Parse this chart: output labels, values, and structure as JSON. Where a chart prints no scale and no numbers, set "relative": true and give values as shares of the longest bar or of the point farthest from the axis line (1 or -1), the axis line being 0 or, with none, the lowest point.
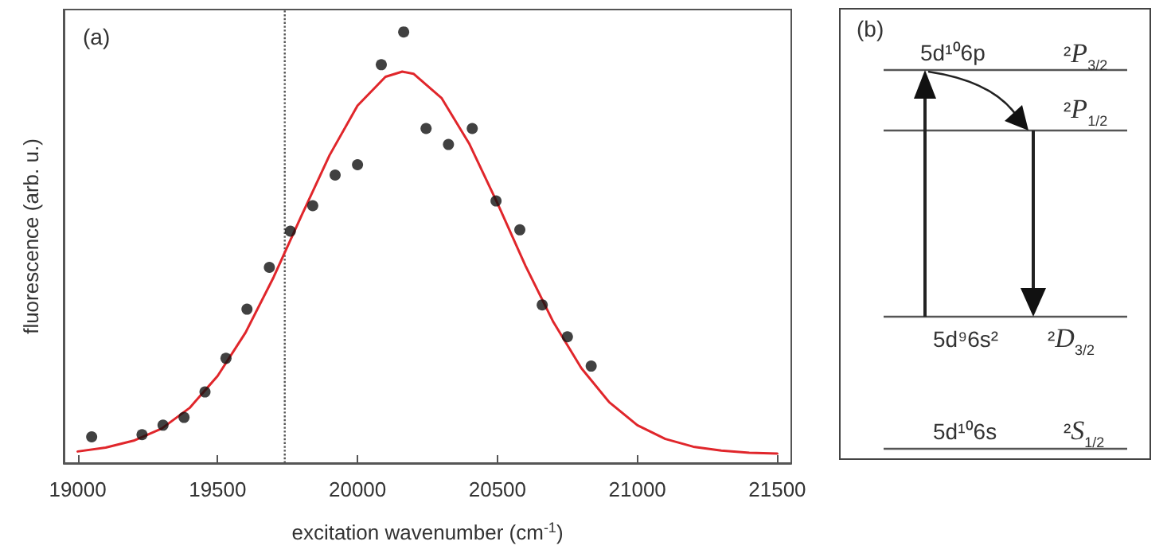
{
  "chart_data": [
    {
      "type": "scatter",
      "xlabel": "excitation wavenumber (cm$^{-1}$)",
      "ylabel": "fluorescence (arb. u.)",
      "relative": true,
      "xlim": [
        18950,
        21550
      ],
      "xticks": [
        19000,
        19500,
        20000,
        20500,
        21000,
        21500
      ],
      "annotations": [
        "(a)"
      ],
      "ref_lines": [
        {
          "axis": "x",
          "value": 19740,
          "color": "#555555",
          "line_style": "dotted"
        }
      ],
      "series": [
        {
          "type": "scatter",
          "marker": "circle",
          "color": "#111111",
          "x": [
            19050,
            19230,
            19305,
            19380,
            19455,
            19530,
            19605,
            19685,
            19760,
            19840,
            19920,
            20000,
            20085,
            20165,
            20245,
            20325,
            20410,
            20495,
            20580,
            20660,
            20750,
            20835
          ],
          "values": [
            0.061,
            0.066,
            0.088,
            0.106,
            0.165,
            0.243,
            0.357,
            0.454,
            0.538,
            0.597,
            0.668,
            0.692,
            0.924,
            1,
            0.776,
            0.739,
            0.776,
            0.608,
            0.541,
            0.367,
            0.293,
            0.225
          ]
        },
        {
          "type": "line",
          "marker": "none",
          "color": "#e0262b",
          "line_style": "solid",
          "x": [
            19000,
            19100,
            19200,
            19300,
            19400,
            19500,
            19600,
            19700,
            19800,
            19900,
            20000,
            20100,
            20160,
            20200,
            20300,
            20400,
            20500,
            20600,
            20700,
            20800,
            20900,
            21000,
            21100,
            21200,
            21300,
            21400,
            21500
          ],
          "values": [
            0.027,
            0.036,
            0.052,
            0.08,
            0.128,
            0.202,
            0.303,
            0.431,
            0.574,
            0.714,
            0.829,
            0.896,
            0.908,
            0.903,
            0.847,
            0.74,
            0.603,
            0.458,
            0.327,
            0.22,
            0.141,
            0.088,
            0.056,
            0.038,
            0.029,
            0.024,
            0.022
          ]
        }
      ]
    },
    {
      "type": "other",
      "annotations": [
        "(b)",
        "5d¹⁰6p",
        "²P$_{3/2}$",
        "²P$_{1/2}$",
        "5d⁹6s²",
        "²D$_{3/2}$",
        "5d¹⁰6s",
        "²S$_{1/2}$"
      ]
    }
  ]
}
